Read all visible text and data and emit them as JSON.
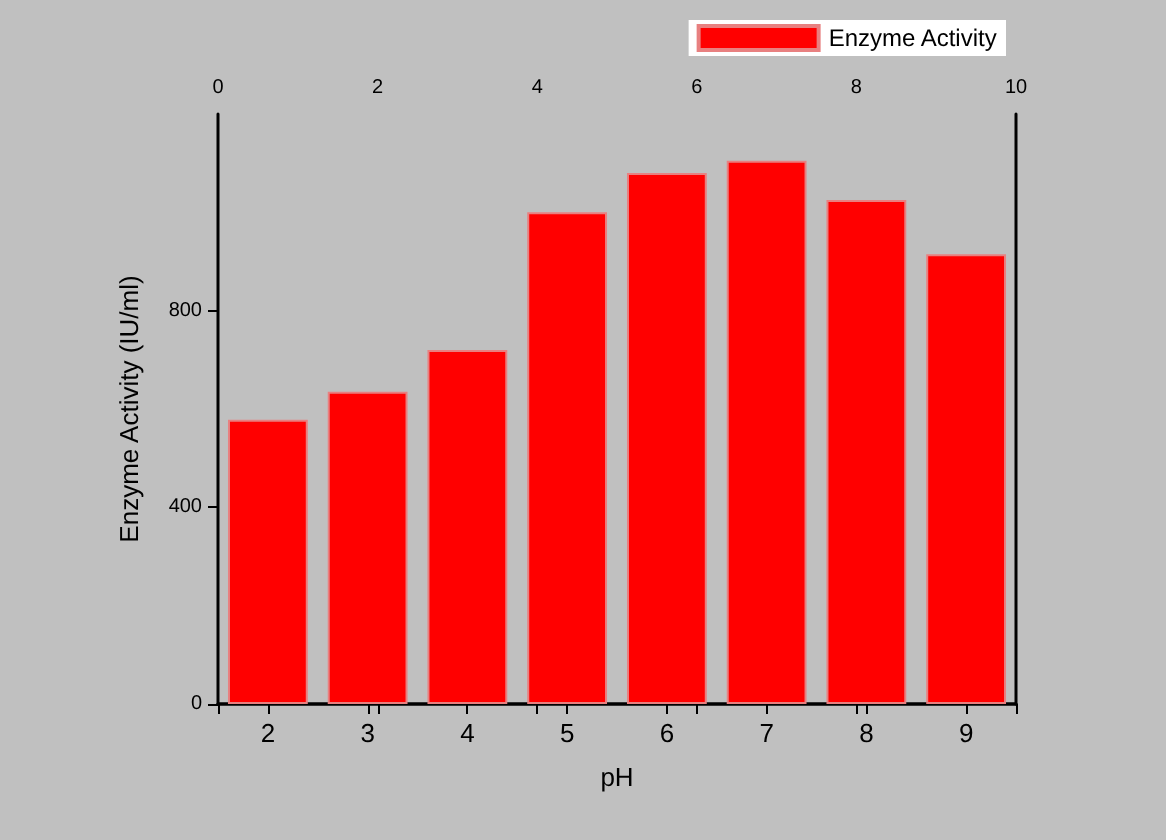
{
  "chart_data": {
    "type": "bar",
    "xlabel": "pH",
    "ylabel": "Enzyme Activity (IU/ml)",
    "categories": [
      "2",
      "3",
      "4",
      "5",
      "6",
      "7",
      "8",
      "9"
    ],
    "series": [
      {
        "name": "Enzyme Activity",
        "color": "#ff0000",
        "values": [
          578,
          635,
          720,
          1000,
          1080,
          1105,
          1025,
          915
        ]
      }
    ],
    "ylim": [
      0,
      1200
    ],
    "yticks": [
      0,
      400,
      800
    ],
    "x2lim": [
      0,
      10
    ],
    "x2ticks": [
      0,
      2,
      4,
      6,
      8,
      10
    ],
    "legend": "top right",
    "grid": false
  }
}
